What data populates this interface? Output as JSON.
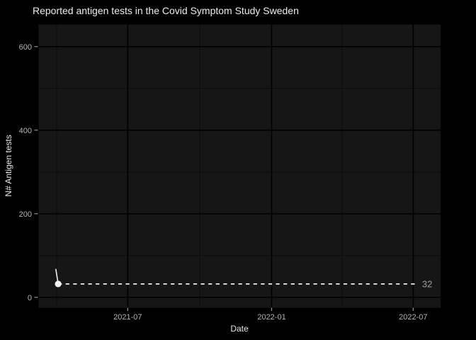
{
  "title": "Reported antigen tests in the Covid Symptom Study Sweden",
  "chart_data": {
    "type": "line",
    "title": "Reported antigen tests in the Covid Symptom Study Sweden",
    "xlabel": "Date",
    "ylabel": "N# Antigen tests",
    "x_axis": {
      "tick_labels": [
        "2021-07",
        "2022-01",
        "2022-07"
      ],
      "tick_dates": [
        "2021-07-01",
        "2022-01-01",
        "2022-07-01"
      ],
      "minor_tick_dates": [
        "2021-04-01",
        "2021-10-01",
        "2022-04-01"
      ],
      "range": [
        "2021-03-09",
        "2022-08-05"
      ]
    },
    "y_axis": {
      "ticks": [
        0,
        200,
        400,
        600
      ],
      "minor_ticks": [
        100,
        300,
        500
      ],
      "range": [
        -25,
        653
      ]
    },
    "series": [
      {
        "name": "Reported antigen tests",
        "points": [
          [
            "2021-03-31",
            68
          ],
          [
            "2021-04-03",
            32
          ]
        ]
      }
    ],
    "annotation": {
      "type": "dashed_hline",
      "value": 32,
      "label": "32",
      "start_date": "2021-04-03",
      "end_date": "2022-07-06"
    },
    "grid": true,
    "legend": "none"
  },
  "colors": {
    "background": "#000000",
    "panel": "#161616",
    "grid_major": "#000000",
    "grid_minor": "#0b0b0b",
    "series": "#f2f2f2",
    "annotation_line": "#f0f0f0",
    "annotation_label": "#9e9e9e",
    "tick_label": "#b5b5b5",
    "tick_mark": "#999999",
    "axis_title": "#e8e8e8",
    "title": "#ededed"
  }
}
